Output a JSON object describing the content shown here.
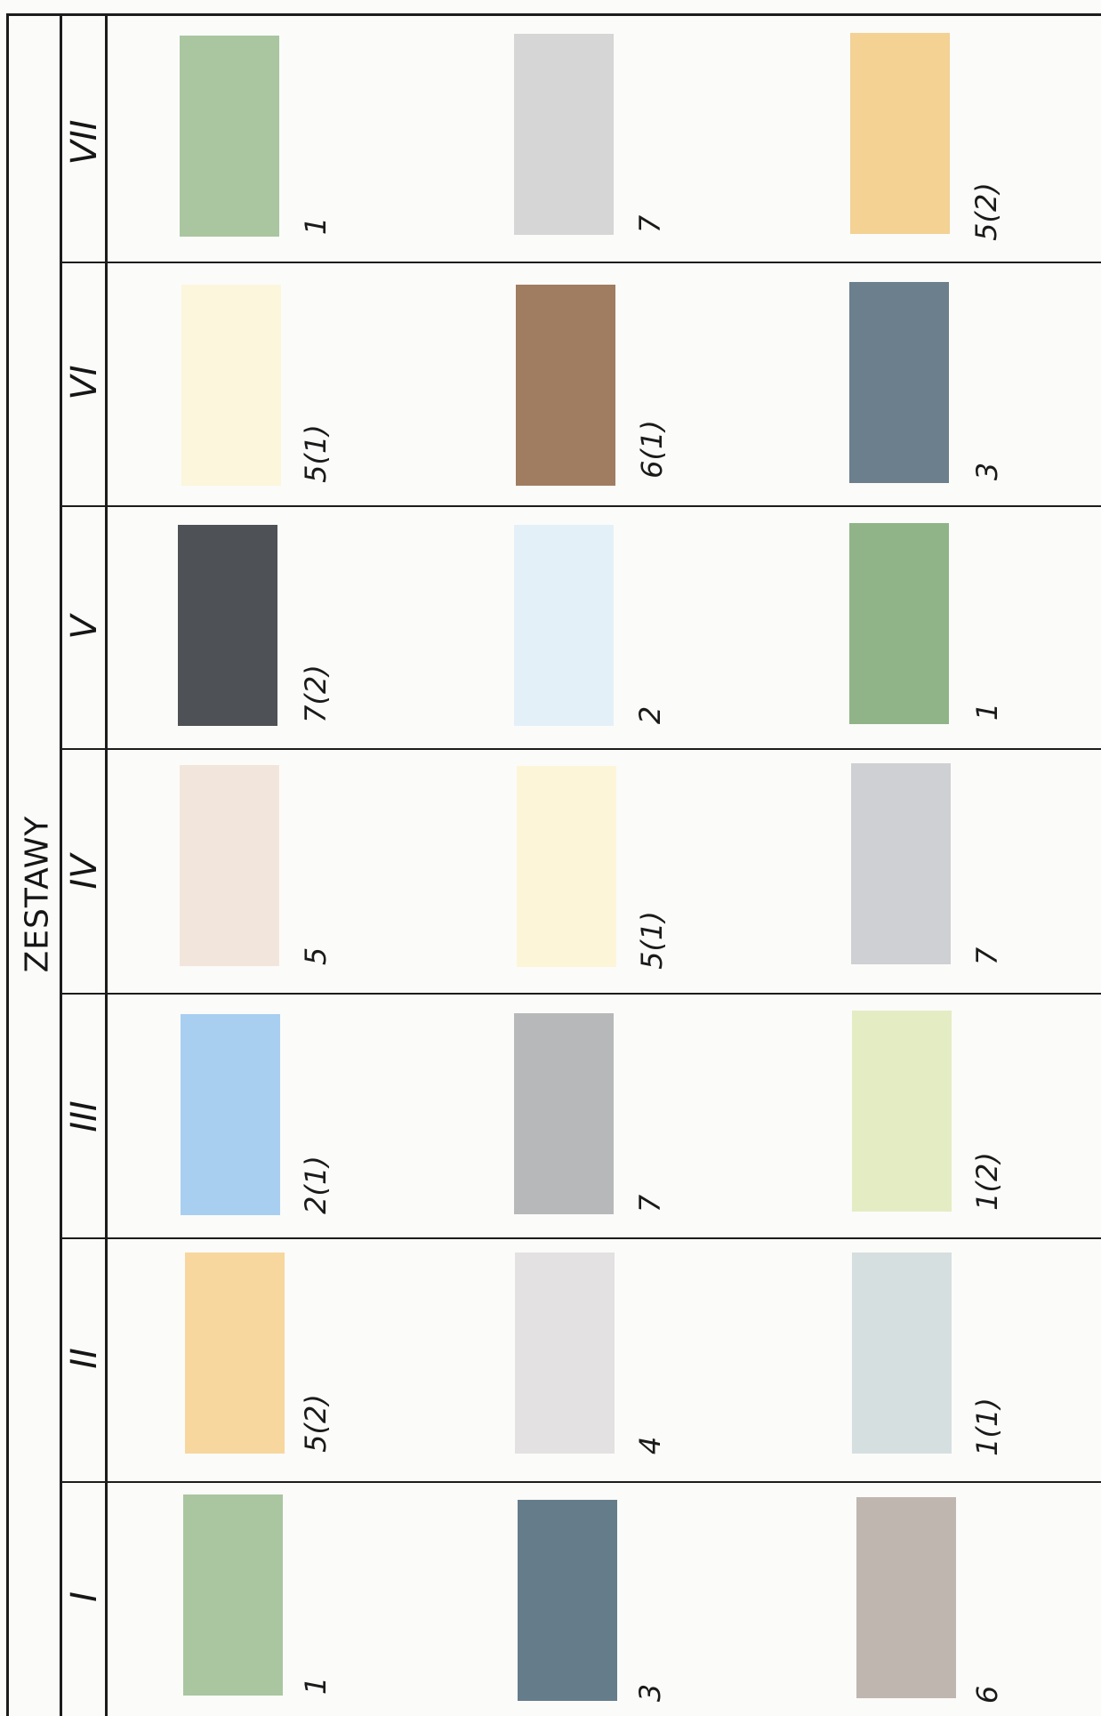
{
  "header": {
    "title": "ZESTAWY"
  },
  "sets": [
    {
      "label": "VII",
      "swatches": [
        {
          "color": "#a9c6a0",
          "code": "1"
        },
        {
          "color": "#d6d6d6",
          "code": "7"
        },
        {
          "color": "#f3d294",
          "code": "5(2)"
        }
      ]
    },
    {
      "label": "VI",
      "swatches": [
        {
          "color": "#fcf6dc",
          "code": "5(1)"
        },
        {
          "color": "#a07c60",
          "code": "6(1)"
        },
        {
          "color": "#6b7f8c",
          "code": "3"
        }
      ]
    },
    {
      "label": "V",
      "swatches": [
        {
          "color": "#4e5155",
          "code": "7(2)"
        },
        {
          "color": "#e4f0f8",
          "code": "2"
        },
        {
          "color": "#90b488",
          "code": "1"
        }
      ]
    },
    {
      "label": "IV",
      "swatches": [
        {
          "color": "#f2e6dc",
          "code": "5"
        },
        {
          "color": "#fdf5d8",
          "code": "5(1)"
        },
        {
          "color": "#cfd0d3",
          "code": "7"
        }
      ]
    },
    {
      "label": "III",
      "swatches": [
        {
          "color": "#a8cff0",
          "code": "2(1)"
        },
        {
          "color": "#b7b8ba",
          "code": "7"
        },
        {
          "color": "#e4ecc4",
          "code": "1(2)"
        }
      ]
    },
    {
      "label": "II",
      "swatches": [
        {
          "color": "#f7d79e",
          "code": "5(2)"
        },
        {
          "color": "#e3e1e1",
          "code": "4"
        },
        {
          "color": "#d5dfe0",
          "code": "1(1)"
        }
      ]
    },
    {
      "label": "I",
      "swatches": [
        {
          "color": "#a9c6a0",
          "code": "1"
        },
        {
          "color": "#657c8b",
          "code": "3"
        },
        {
          "color": "#bfb6b0",
          "code": "6"
        }
      ]
    }
  ]
}
